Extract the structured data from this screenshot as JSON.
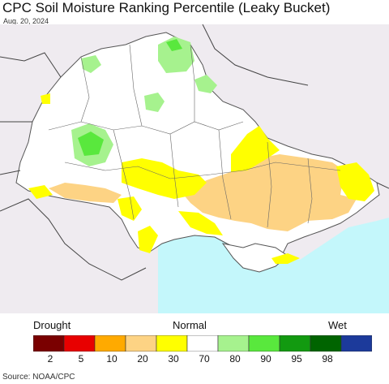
{
  "title": "CPC Soil Moisture Ranking Percentile (Leaky Bucket)",
  "date": "Aug. 20, 2024",
  "legend": {
    "label_drought": "Drought",
    "label_normal": "Normal",
    "label_wet": "Wet",
    "bins": [
      {
        "color": "#7a0000",
        "tick": "2"
      },
      {
        "color": "#e80000",
        "tick": "5"
      },
      {
        "color": "#ffaa00",
        "tick": "10"
      },
      {
        "color": "#fdd384",
        "tick": "20"
      },
      {
        "color": "#ffff00",
        "tick": "30"
      },
      {
        "color": "#ffffff",
        "tick": "70"
      },
      {
        "color": "#a6f28e",
        "tick": "80"
      },
      {
        "color": "#59e83d",
        "tick": "90"
      },
      {
        "color": "#129a10",
        "tick": "95"
      },
      {
        "color": "#006400",
        "tick": "98"
      },
      {
        "color": "#1c3a9b",
        "tick": ""
      }
    ]
  },
  "source": "Source: NOAA/CPC",
  "colors": {
    "sea": "#c4f7fb",
    "outside": "#efebf0",
    "land": "#ffffff",
    "dry": "#fdd384",
    "abnormal": "#ffff00",
    "moist": "#a6f28e",
    "very_moist": "#59e83d"
  }
}
